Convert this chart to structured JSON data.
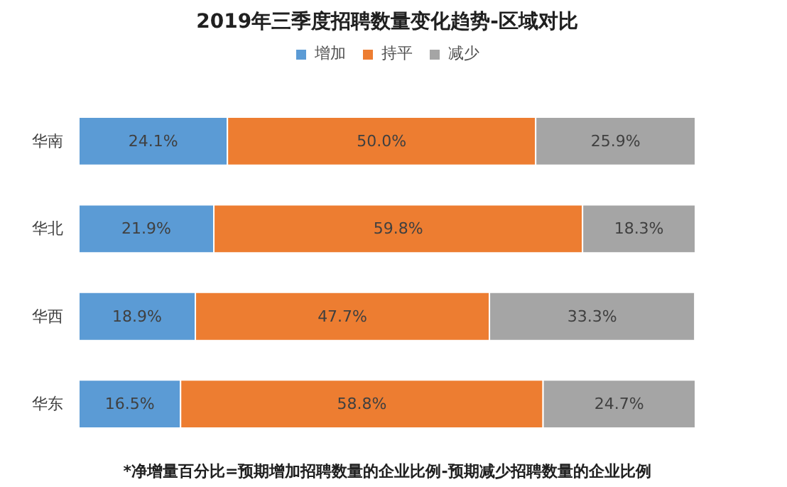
{
  "chart_data": {
    "type": "bar",
    "orientation": "horizontal",
    "stacked": true,
    "title": "2019年三季度招聘数量变化趋势-区域对比",
    "categories": [
      "华南",
      "华北",
      "华西",
      "华东"
    ],
    "series": [
      {
        "name": "增加",
        "color": "#5b9bd5",
        "values": [
          24.1,
          21.9,
          18.9,
          16.5
        ],
        "value_labels": [
          "24.1%",
          "21.9%",
          "18.9%",
          "16.5%"
        ]
      },
      {
        "name": "持平",
        "color": "#ed7d31",
        "values": [
          50.0,
          59.8,
          47.7,
          58.8
        ],
        "value_labels": [
          "50.0%",
          "59.8%",
          "47.7%",
          "58.8%"
        ]
      },
      {
        "name": "减少",
        "color": "#a5a5a5",
        "values": [
          25.9,
          18.3,
          33.3,
          24.7
        ],
        "value_labels": [
          "25.9%",
          "18.3%",
          "33.3%",
          "24.7%"
        ]
      }
    ],
    "xlim": [
      0,
      100
    ],
    "tick_labels": "y",
    "grid": false,
    "legend": "top",
    "annotations": [
      "*净增量百分比=预期增加招聘数量的企业比例-预期减少招聘数量的企业比例"
    ]
  }
}
